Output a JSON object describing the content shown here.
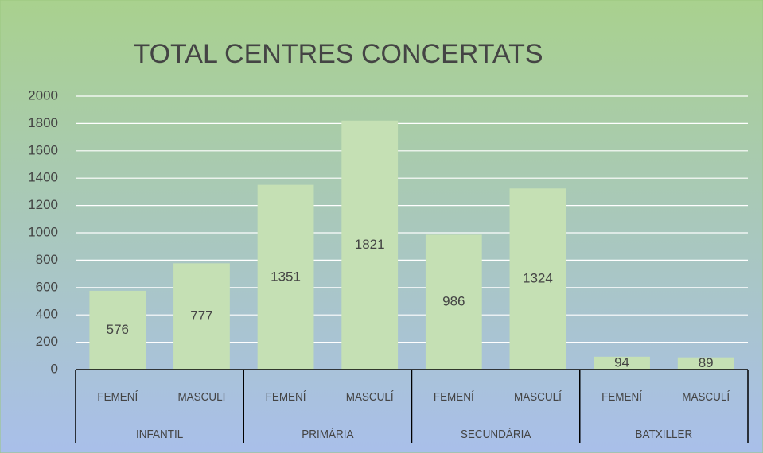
{
  "chart_data": {
    "type": "bar",
    "title": "TOTAL CENTRES CONCERTATS",
    "categories": [
      "FEMENÍ",
      "MASCULI",
      "FEMENÍ",
      "MASCULÍ",
      "FEMENÍ",
      "MASCULÍ",
      "FEMENÍ",
      "MASCULÍ"
    ],
    "groups": [
      "INFANTIL",
      "PRIMÀRIA",
      "SECUNDÀRIA",
      "BATXILLER"
    ],
    "values": [
      576,
      777,
      1351,
      1821,
      986,
      1324,
      94,
      89
    ],
    "color": "#c5e0b4",
    "ylim": [
      0,
      2000
    ],
    "yticks": [
      0,
      200,
      400,
      600,
      800,
      1000,
      1200,
      1400,
      1600,
      1800,
      2000
    ],
    "grid": true
  }
}
